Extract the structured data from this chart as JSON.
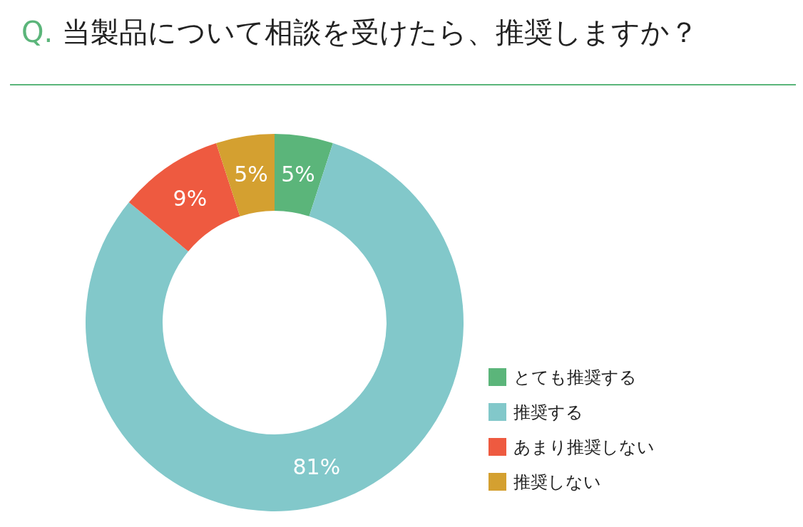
{
  "chart_data": {
    "type": "donut",
    "title": "Q. 当製品について相談を受けたら、推奨しますか？",
    "categories": [
      "とても推奨する",
      "推奨する",
      "あまり推奨しない",
      "推奨しない"
    ],
    "values": [
      5,
      81,
      9,
      5
    ],
    "colors": [
      "#5bb57a",
      "#82c8ca",
      "#ee5a40",
      "#d4a030"
    ],
    "value_labels": [
      "5%",
      "81%",
      "9%",
      "5%"
    ],
    "legend": "bottom right"
  }
}
